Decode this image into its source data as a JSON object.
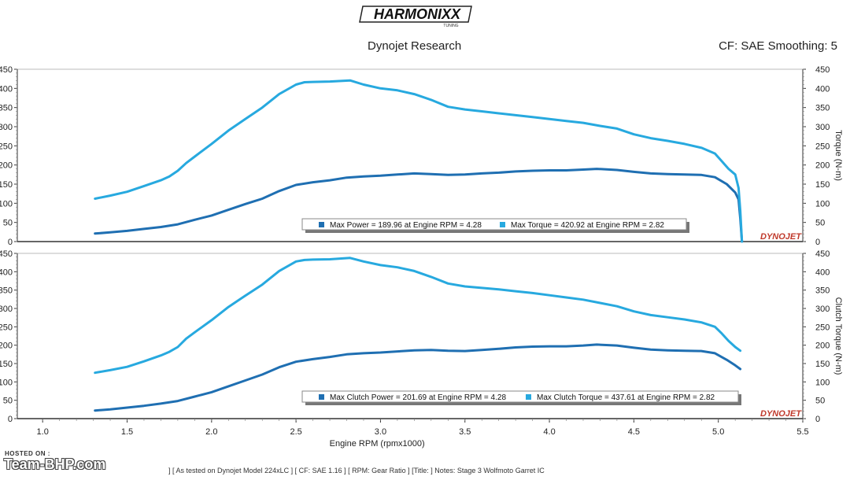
{
  "header": {
    "logo_text": "HARMONIXX",
    "logo_sub": "TUNING",
    "subtitle": "Dynojet Research",
    "cf_info": "CF: SAE Smoothing: 5"
  },
  "footer": {
    "run_info": "] [ As tested on Dynojet Model 224xLC ] [ CF: SAE 1.16 ] [ RPM: Gear Ratio ] [Title: ]  Notes: Stage 3 Wolfmoto Garret IC"
  },
  "watermark": {
    "hosted": "HOSTED ON :",
    "site": "Team-BHP.com"
  },
  "chart_data": [
    {
      "type": "line",
      "y_ticks": [
        "0",
        "50",
        "100",
        "150",
        "200",
        "250",
        "300",
        "350",
        "400",
        "450"
      ],
      "y2_ticks": [
        "0",
        "50",
        "100",
        "150",
        "200",
        "250",
        "300",
        "350",
        "400",
        "450"
      ],
      "y2label": "Torque (N-m)",
      "ylim": [
        0,
        450
      ],
      "xlim": [
        0.85,
        5.5
      ],
      "grid": false,
      "brand": "DYNOJET",
      "legend": {
        "power": "Max Power = 189.96 at Engine RPM = 4.28",
        "torque": "Max Torque = 420.92 at Engine RPM = 2.82"
      },
      "series": [
        {
          "key": "power",
          "color": "#1f6fb2",
          "x": [
            1.31,
            1.4,
            1.5,
            1.6,
            1.7,
            1.8,
            1.9,
            2.0,
            2.1,
            2.2,
            2.3,
            2.4,
            2.5,
            2.6,
            2.7,
            2.8,
            2.9,
            3.0,
            3.1,
            3.2,
            3.3,
            3.4,
            3.5,
            3.6,
            3.7,
            3.8,
            3.9,
            4.0,
            4.1,
            4.2,
            4.28,
            4.4,
            4.5,
            4.6,
            4.7,
            4.8,
            4.9,
            4.98,
            5.05,
            5.1,
            5.12,
            5.13,
            5.14
          ],
          "y": [
            21,
            24,
            28,
            33,
            38,
            45,
            57,
            68,
            83,
            98,
            112,
            132,
            148,
            155,
            160,
            167,
            170,
            172,
            175,
            178,
            176,
            174,
            175,
            178,
            180,
            183,
            185,
            186,
            186,
            188,
            189.96,
            187,
            182,
            178,
            176,
            175,
            174,
            168,
            150,
            128,
            110,
            60,
            0
          ]
        },
        {
          "key": "torque",
          "color": "#27a9df",
          "x": [
            1.31,
            1.4,
            1.5,
            1.6,
            1.7,
            1.75,
            1.8,
            1.85,
            1.9,
            2.0,
            2.1,
            2.2,
            2.3,
            2.4,
            2.5,
            2.55,
            2.6,
            2.7,
            2.82,
            2.9,
            3.0,
            3.1,
            3.2,
            3.3,
            3.4,
            3.5,
            3.6,
            3.7,
            3.8,
            3.9,
            4.0,
            4.1,
            4.2,
            4.3,
            4.4,
            4.5,
            4.6,
            4.7,
            4.8,
            4.9,
            4.98,
            5.02,
            5.06,
            5.1,
            5.12,
            5.13,
            5.14
          ],
          "y": [
            112,
            120,
            130,
            145,
            160,
            170,
            185,
            205,
            222,
            255,
            290,
            320,
            350,
            385,
            410,
            416,
            417,
            418,
            420.92,
            410,
            400,
            395,
            385,
            370,
            352,
            345,
            340,
            335,
            330,
            325,
            320,
            315,
            310,
            302,
            295,
            280,
            270,
            263,
            255,
            245,
            230,
            210,
            190,
            175,
            140,
            80,
            0
          ]
        }
      ]
    },
    {
      "type": "line",
      "y_ticks": [
        "0",
        "50",
        "100",
        "150",
        "200",
        "250",
        "300",
        "350",
        "400",
        "450"
      ],
      "y2_ticks": [
        "0",
        "50",
        "100",
        "150",
        "200",
        "250",
        "300",
        "350",
        "400",
        "450"
      ],
      "y2label": "Clutch Torque (N-m)",
      "ylim": [
        0,
        450
      ],
      "xlim": [
        0.85,
        5.5
      ],
      "grid": false,
      "brand": "DYNOJET",
      "x_ticks": [
        "1.0",
        "1.5",
        "2.0",
        "2.5",
        "3.0",
        "3.5",
        "4.0",
        "4.5",
        "5.0",
        "5.5"
      ],
      "xlabel": "Engine RPM (rpmx1000)",
      "legend": {
        "power": "Max Clutch Power = 201.69 at Engine RPM = 4.28",
        "torque": "Max Clutch Torque = 437.61 at Engine RPM = 2.82"
      },
      "series": [
        {
          "key": "power",
          "color": "#1f6fb2",
          "x": [
            1.31,
            1.4,
            1.5,
            1.6,
            1.7,
            1.8,
            1.9,
            2.0,
            2.1,
            2.2,
            2.3,
            2.4,
            2.5,
            2.6,
            2.7,
            2.8,
            2.9,
            3.0,
            3.1,
            3.2,
            3.3,
            3.4,
            3.5,
            3.6,
            3.7,
            3.8,
            3.9,
            4.0,
            4.1,
            4.2,
            4.28,
            4.4,
            4.5,
            4.6,
            4.7,
            4.8,
            4.9,
            4.98,
            5.05,
            5.1,
            5.13
          ],
          "y": [
            22,
            25,
            30,
            35,
            41,
            48,
            60,
            72,
            88,
            104,
            120,
            140,
            155,
            162,
            168,
            175,
            178,
            180,
            183,
            186,
            187,
            185,
            184,
            187,
            190,
            194,
            196,
            197,
            197,
            199,
            201.69,
            199,
            193,
            188,
            186,
            185,
            184,
            178,
            160,
            145,
            135
          ]
        },
        {
          "key": "torque",
          "color": "#27a9df",
          "x": [
            1.31,
            1.4,
            1.5,
            1.6,
            1.7,
            1.75,
            1.8,
            1.85,
            1.9,
            2.0,
            2.1,
            2.2,
            2.3,
            2.4,
            2.5,
            2.55,
            2.6,
            2.7,
            2.82,
            2.9,
            3.0,
            3.1,
            3.2,
            3.3,
            3.4,
            3.5,
            3.6,
            3.7,
            3.8,
            3.9,
            4.0,
            4.1,
            4.2,
            4.3,
            4.4,
            4.5,
            4.6,
            4.7,
            4.8,
            4.9,
            4.98,
            5.02,
            5.06,
            5.1,
            5.13
          ],
          "y": [
            125,
            132,
            141,
            156,
            172,
            182,
            195,
            218,
            235,
            268,
            304,
            335,
            365,
            402,
            428,
            432,
            433,
            434,
            437.61,
            428,
            418,
            412,
            402,
            386,
            368,
            360,
            356,
            352,
            347,
            342,
            336,
            330,
            324,
            315,
            306,
            292,
            282,
            276,
            270,
            262,
            250,
            232,
            212,
            195,
            185
          ]
        }
      ]
    }
  ]
}
